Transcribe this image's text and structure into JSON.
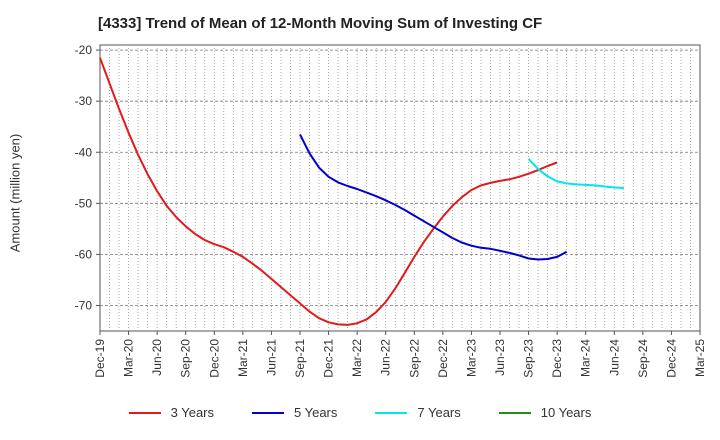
{
  "chart_data": {
    "type": "line",
    "title": "[4333]  Trend of Mean of 12-Month Moving Sum of Investing CF",
    "xlabel": "",
    "ylabel": "Amount (million yen)",
    "ylim": [
      -75,
      -19
    ],
    "yticks": [
      -20,
      -30,
      -40,
      -50,
      -60,
      -70
    ],
    "x_tick_labels": [
      "Dec-19",
      "Mar-20",
      "Jun-20",
      "Sep-20",
      "Dec-20",
      "Mar-21",
      "Jun-21",
      "Sep-21",
      "Dec-21",
      "Mar-22",
      "Jun-22",
      "Sep-22",
      "Dec-22",
      "Mar-23",
      "Jun-23",
      "Sep-23",
      "Dec-23",
      "Mar-24",
      "Jun-24",
      "Sep-24",
      "Dec-24",
      "Mar-25"
    ],
    "x_months_from_first_tick": "x values are month indices where 0 = Dec-19",
    "grid": true,
    "legend_position": "bottom",
    "series": [
      {
        "name": "3 Years",
        "color": "#e31a1c",
        "x": [
          0,
          1,
          2,
          3,
          4,
          5,
          6,
          7,
          8,
          9,
          10,
          11,
          12,
          13,
          14,
          15,
          16,
          17,
          18,
          19,
          20,
          21,
          22,
          23,
          24,
          25,
          26,
          27,
          28,
          29,
          30,
          31,
          32,
          33,
          34,
          35,
          36,
          37,
          38,
          39,
          40,
          41,
          42,
          43,
          44,
          45,
          46,
          47,
          48,
          49,
          50,
          51,
          52,
          53,
          54,
          55,
          56,
          57
        ],
        "values": [
          -21.5,
          -26.5,
          -31.5,
          -36.2,
          -40.5,
          -44.3,
          -47.6,
          -50.5,
          -52.7,
          -54.5,
          -56.0,
          -57.2,
          -58.0,
          -58.6,
          -59.5,
          -60.5,
          -61.8,
          -63.2,
          -64.8,
          -66.4,
          -68.0,
          -69.6,
          -71.2,
          -72.5,
          -73.3,
          -73.7,
          -73.8,
          -73.5,
          -72.7,
          -71.3,
          -69.3,
          -66.7,
          -63.6,
          -60.5,
          -57.6,
          -55.0,
          -52.6,
          -50.5,
          -48.8,
          -47.4,
          -46.5,
          -46.0,
          -45.6,
          -45.3,
          -44.8,
          -44.2,
          -43.5,
          -42.7,
          -42.0,
          null,
          null,
          null,
          null,
          null,
          null,
          null,
          null,
          null
        ]
      },
      {
        "name": "5 Years",
        "color": "#0000cc",
        "x": [
          21,
          22,
          23,
          24,
          25,
          26,
          27,
          28,
          29,
          30,
          31,
          32,
          33,
          34,
          35,
          36,
          37,
          38,
          39,
          40,
          41,
          42,
          43,
          44,
          45,
          46,
          47,
          48,
          49,
          50,
          51,
          52,
          53,
          54,
          55,
          56,
          57
        ],
        "values": [
          -36.5,
          -40.2,
          -43.0,
          -44.8,
          -45.9,
          -46.6,
          -47.2,
          -47.9,
          -48.6,
          -49.4,
          -50.3,
          -51.3,
          -52.4,
          -53.5,
          -54.6,
          -55.7,
          -56.8,
          -57.7,
          -58.3,
          -58.7,
          -58.9,
          -59.3,
          -59.7,
          -60.2,
          -60.8,
          -61.0,
          -60.9,
          -60.5,
          -59.5,
          null,
          null,
          null,
          null,
          null,
          null,
          null,
          null
        ]
      },
      {
        "name": "7 Years",
        "color": "#00e5ee",
        "x": [
          45,
          46,
          47,
          48,
          49,
          50,
          51,
          52,
          53,
          54,
          55,
          56
        ],
        "values": [
          -41.3,
          -43.3,
          -44.7,
          -45.7,
          -46.1,
          -46.3,
          -46.4,
          -46.5,
          -46.7,
          -46.9,
          -47.0,
          null
        ]
      },
      {
        "name": "10 Years",
        "color": "#228b22",
        "x": [],
        "values": []
      }
    ]
  }
}
